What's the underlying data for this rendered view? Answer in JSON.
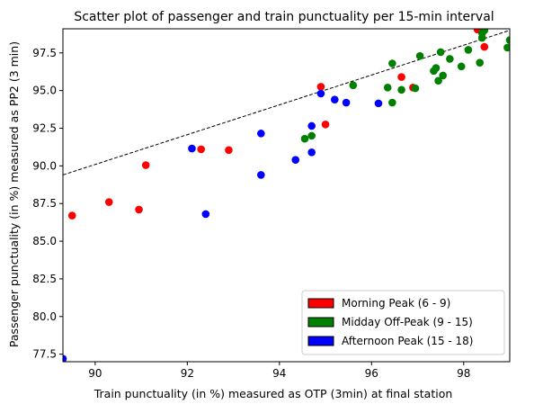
{
  "chart_data": {
    "type": "scatter",
    "title": "Scatter plot of passenger and train punctuality per 15-min interval",
    "xlabel": "Train punctuality (in %) measured as OTP (3min) at final station",
    "ylabel": "Passenger punctuality (in %) measured as PP2 (3 min)",
    "xlim": [
      89.3,
      99.0
    ],
    "ylim": [
      77.0,
      99.1
    ],
    "xticks": [
      90,
      92,
      94,
      96,
      98
    ],
    "yticks": [
      77.5,
      80.0,
      82.5,
      85.0,
      87.5,
      90.0,
      92.5,
      95.0,
      97.5
    ],
    "xtick_labels": [
      "90",
      "92",
      "94",
      "96",
      "98"
    ],
    "ytick_labels": [
      "77.5",
      "80.0",
      "82.5",
      "85.0",
      "87.5",
      "90.0",
      "92.5",
      "95.0",
      "97.5"
    ],
    "grid": false,
    "legend_position": "lower-right",
    "reference_line": {
      "style": "dashed",
      "color": "#000000",
      "points": [
        [
          89.3,
          89.4
        ],
        [
          99.0,
          99.0
        ]
      ]
    },
    "series": [
      {
        "name": "Morning Peak (6 - 9)",
        "color": "#ff0000",
        "points": [
          [
            89.5,
            86.7
          ],
          [
            90.3,
            87.6
          ],
          [
            90.95,
            87.1
          ],
          [
            91.1,
            90.05
          ],
          [
            92.3,
            91.1
          ],
          [
            92.9,
            91.05
          ],
          [
            94.9,
            95.25
          ],
          [
            95.0,
            92.75
          ],
          [
            96.65,
            95.9
          ],
          [
            96.9,
            95.2
          ],
          [
            98.3,
            99.05
          ],
          [
            98.45,
            97.9
          ]
        ]
      },
      {
        "name": "Midday Off-Peak (9 - 15)",
        "color": "#008000",
        "points": [
          [
            94.55,
            91.8
          ],
          [
            94.7,
            92.0
          ],
          [
            95.6,
            95.35
          ],
          [
            96.35,
            95.2
          ],
          [
            96.45,
            94.2
          ],
          [
            96.45,
            96.8
          ],
          [
            96.65,
            95.05
          ],
          [
            96.95,
            95.15
          ],
          [
            97.05,
            97.3
          ],
          [
            97.35,
            96.3
          ],
          [
            97.4,
            96.5
          ],
          [
            97.45,
            95.65
          ],
          [
            97.5,
            97.55
          ],
          [
            97.55,
            96.0
          ],
          [
            97.7,
            97.1
          ],
          [
            97.95,
            96.6
          ],
          [
            98.1,
            97.7
          ],
          [
            98.35,
            96.85
          ],
          [
            98.4,
            98.8
          ],
          [
            98.4,
            98.5
          ],
          [
            98.45,
            99.0
          ],
          [
            98.95,
            97.85
          ],
          [
            99.0,
            98.35
          ]
        ]
      },
      {
        "name": "Afternoon Peak (15 - 18)",
        "color": "#0000ff",
        "points": [
          [
            89.3,
            77.2
          ],
          [
            92.1,
            91.15
          ],
          [
            92.4,
            86.8
          ],
          [
            93.6,
            89.4
          ],
          [
            93.6,
            92.15
          ],
          [
            94.35,
            90.4
          ],
          [
            94.7,
            92.65
          ],
          [
            94.7,
            90.9
          ],
          [
            94.9,
            94.8
          ],
          [
            95.2,
            94.4
          ],
          [
            95.45,
            94.2
          ],
          [
            96.15,
            94.15
          ]
        ]
      }
    ]
  }
}
